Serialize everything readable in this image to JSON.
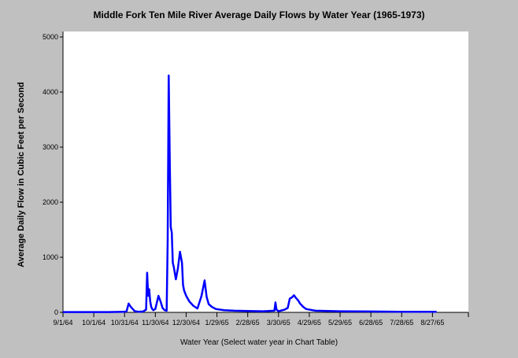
{
  "chart_data": {
    "type": "line",
    "title": "Middle Fork Ten Mile River Average Daily Flows by Water Year (1965-1973)",
    "xlabel": "Water Year (Select water year in Chart Table)",
    "ylabel": "Average Daily Flow in Cubic Feet per Second",
    "ylim": [
      0,
      5000
    ],
    "yticks": [
      0,
      1000,
      2000,
      3000,
      4000,
      5000
    ],
    "xlim": [
      "9/1/64",
      "10/1/65"
    ],
    "xticks": [
      "9/1/64",
      "10/1/64",
      "10/31/64",
      "11/30/64",
      "12/30/64",
      "1/29/65",
      "2/28/65",
      "3/30/65",
      "4/29/65",
      "5/29/65",
      "6/28/65",
      "7/28/65",
      "8/27/65"
    ],
    "grid": false,
    "line_color": "#0000ff",
    "series": [
      {
        "x": [
          "9/1/64",
          "9/15/64",
          "10/1/64",
          "10/15/64",
          "10/31/64",
          "11/2/64",
          "11/4/64",
          "11/6/64",
          "11/8/64",
          "11/10/64",
          "11/14/64",
          "11/18/64",
          "11/21/64",
          "11/22/64",
          "11/23/64",
          "11/24/64",
          "11/25/64",
          "11/26/64",
          "11/27/64",
          "11/28/64",
          "11/30/64",
          "12/3/64",
          "12/5/64",
          "12/7/64",
          "12/9/64",
          "12/11/64",
          "12/12/64",
          "12/13/64",
          "12/14/64",
          "12/15/64",
          "12/16/64",
          "12/17/64",
          "12/18/64",
          "12/20/64",
          "12/22/64",
          "12/24/64",
          "12/26/64",
          "12/27/64",
          "12/28/64",
          "12/30/64",
          "1/2/65",
          "1/6/65",
          "1/10/65",
          "1/14/65",
          "1/17/65",
          "1/19/65",
          "1/21/65",
          "1/24/65",
          "1/28/65",
          "2/5/65",
          "2/15/65",
          "2/28/65",
          "3/15/65",
          "3/26/65",
          "3/27/65",
          "3/28/65",
          "3/30/65",
          "4/5/65",
          "4/8/65",
          "4/10/65",
          "4/12/65",
          "4/14/65",
          "4/16/65",
          "4/18/65",
          "4/20/65",
          "4/23/65",
          "4/26/65",
          "5/5/65",
          "5/29/65",
          "6/28/65",
          "7/28/65",
          "8/27/65",
          "8/31/65"
        ],
        "values": [
          5,
          5,
          5,
          5,
          10,
          20,
          160,
          100,
          60,
          20,
          10,
          15,
          50,
          720,
          300,
          420,
          200,
          100,
          60,
          40,
          60,
          300,
          200,
          80,
          40,
          30,
          1300,
          4300,
          2800,
          1550,
          1450,
          900,
          820,
          600,
          800,
          1100,
          900,
          500,
          400,
          300,
          200,
          120,
          70,
          300,
          580,
          280,
          150,
          100,
          60,
          40,
          30,
          25,
          20,
          30,
          180,
          50,
          20,
          50,
          80,
          250,
          270,
          310,
          260,
          220,
          160,
          100,
          60,
          30,
          20,
          15,
          10,
          10,
          10
        ]
      }
    ]
  }
}
